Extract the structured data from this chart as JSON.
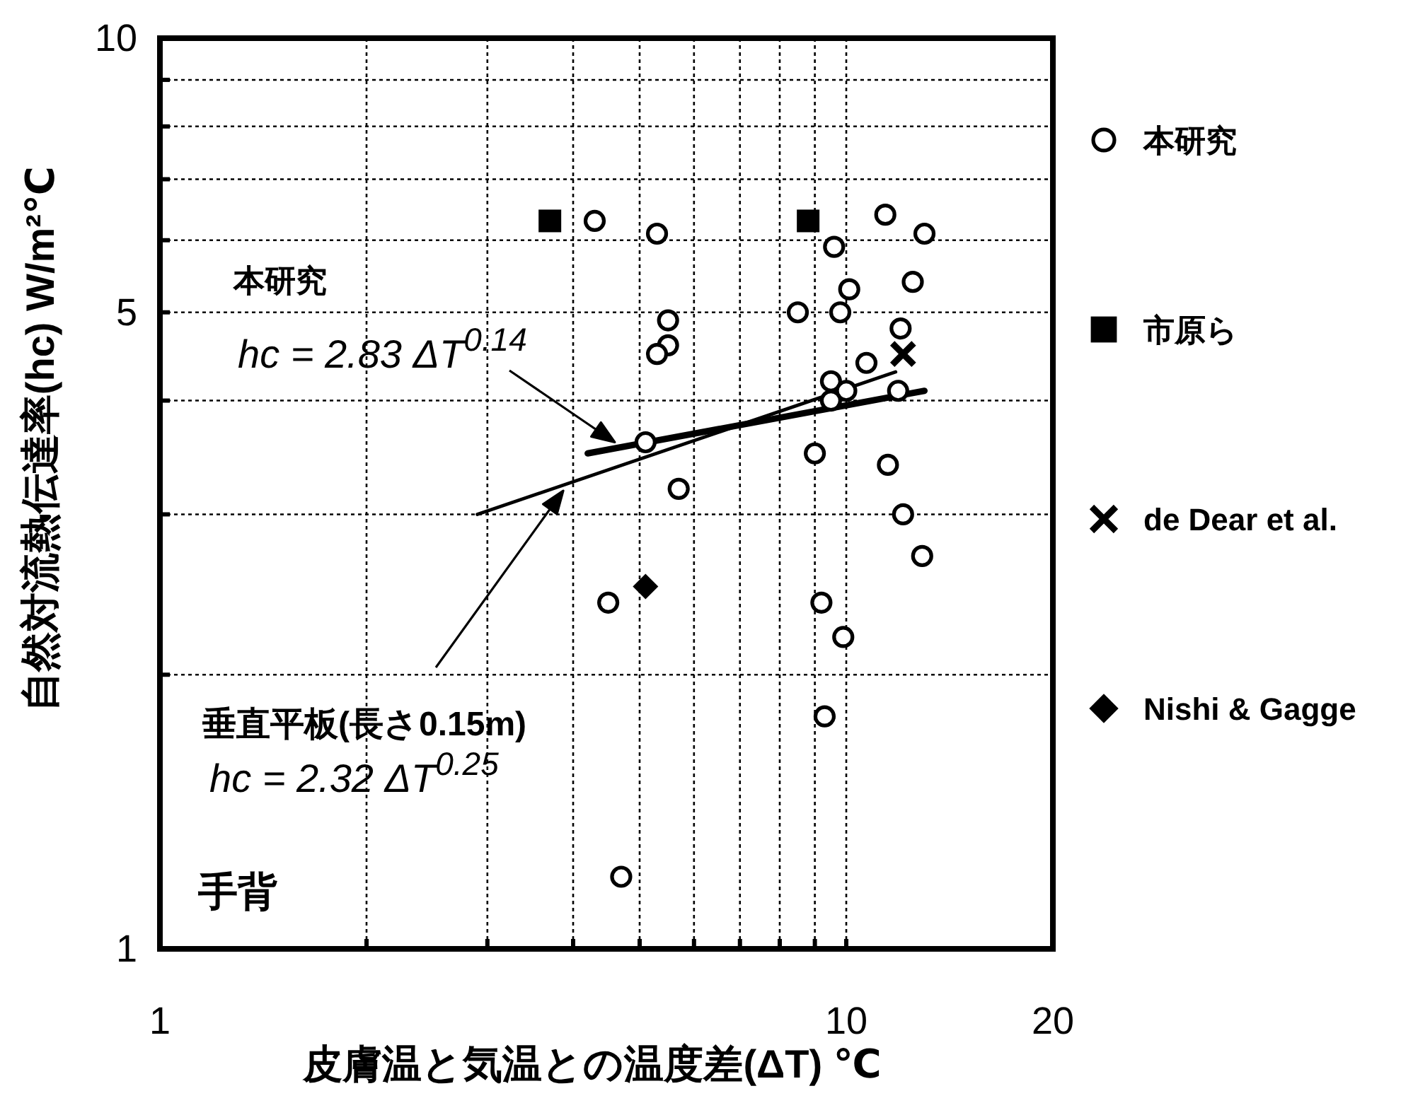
{
  "chart_data": {
    "type": "scatter",
    "xlabel": "皮膚温と気温との温度差(ΔT) ℃",
    "ylabel": "自然対流熱伝達率(hc) W/m²℃",
    "xlim": [
      1,
      20
    ],
    "ylim": [
      1,
      10
    ],
    "log": "xy",
    "xticks": [
      1,
      {
        "value": 2,
        "label": null
      },
      {
        "value": 3,
        "label": null
      },
      {
        "value": 4,
        "label": null
      },
      {
        "value": 5,
        "label": null
      },
      {
        "value": 6,
        "label": null
      },
      {
        "value": 7,
        "label": null
      },
      {
        "value": 8,
        "label": null
      },
      {
        "value": 9,
        "label": null
      },
      10,
      20
    ],
    "yticks": [
      1,
      {
        "value": 2,
        "label": null
      },
      {
        "value": 3,
        "label": null
      },
      {
        "value": 4,
        "label": null
      },
      5,
      {
        "value": 6,
        "label": null
      },
      {
        "value": 7,
        "label": null
      },
      {
        "value": 8,
        "label": null
      },
      {
        "value": 9,
        "label": null
      },
      10
    ],
    "grid": true,
    "legend": "right",
    "series": [
      {
        "type": "line",
        "marker": "none",
        "line_style": "solid",
        "color": "#000000",
        "x": [
          4.2,
          13
        ],
        "values": [
          3.5,
          4.1
        ]
      },
      {
        "type": "line",
        "marker": "none",
        "line_style": "solid",
        "color": "#000000",
        "x": [
          2.9,
          11.8
        ],
        "values": [
          3.0,
          4.3
        ]
      },
      {
        "name": "本研究",
        "marker": "circle",
        "color": "#000000",
        "x": [
          4.3,
          5.3,
          9.6,
          11.4,
          13.0,
          10.1,
          12.5,
          8.5,
          9.8,
          5.5,
          5.5,
          5.3,
          12.0,
          10.7,
          9.5,
          10.0,
          9.5,
          11.9,
          5.1,
          9.0,
          11.5,
          5.7,
          12.1,
          12.9,
          4.5,
          9.2,
          9.9,
          9.3,
          4.7
        ],
        "values": [
          6.3,
          6.1,
          5.9,
          6.4,
          6.1,
          5.3,
          5.4,
          5.0,
          5.0,
          4.9,
          4.6,
          4.5,
          4.8,
          4.4,
          4.2,
          4.1,
          4.0,
          4.1,
          3.6,
          3.5,
          3.4,
          3.2,
          3.0,
          2.7,
          2.4,
          2.4,
          2.2,
          1.8,
          1.2
        ]
      },
      {
        "name": "市原ら",
        "marker": "square",
        "color": "#000000",
        "x": [
          3.7,
          8.8
        ],
        "values": [
          6.3,
          6.3
        ]
      },
      {
        "name": "de Dear et al.",
        "marker": "cross",
        "color": "#000000",
        "x": [
          12.1
        ],
        "values": [
          4.5
        ]
      },
      {
        "name": "Nishi & Gagge",
        "marker": "diamond",
        "color": "#000000",
        "x": [
          5.1
        ],
        "values": [
          2.5
        ]
      }
    ],
    "annotations": [
      {
        "text": "本研究\nhc = 2.83 ΔT$^{0.14}$",
        "x": 4.6,
        "y": 3.6
      },
      "垂直平板(長さ0.15m)\nhc = 2.32 ΔT$^{0.25}$",
      "手背"
    ]
  }
}
